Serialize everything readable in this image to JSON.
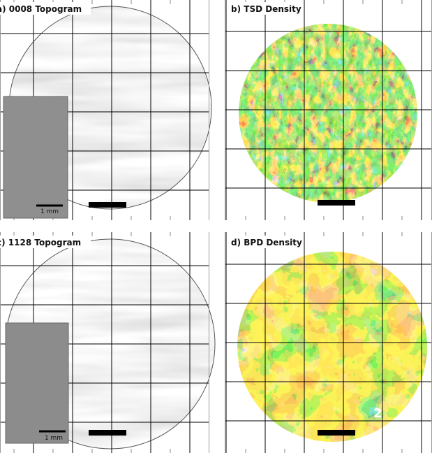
{
  "panels": [
    {
      "title": "a) 0008 Topogram",
      "inset_scale": "1 mm"
    },
    {
      "title": "b) TSD Density"
    },
    {
      "title": "c) 1128 Topogram",
      "inset_scale": "1 mm"
    },
    {
      "title": "d) BPD Density",
      "annotation": "2"
    }
  ]
}
